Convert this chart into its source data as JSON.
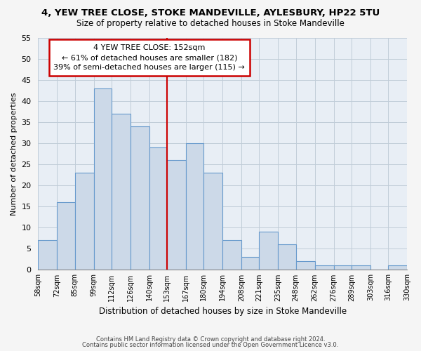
{
  "title": "4, YEW TREE CLOSE, STOKE MANDEVILLE, AYLESBURY, HP22 5TU",
  "subtitle": "Size of property relative to detached houses in Stoke Mandeville",
  "xlabel": "Distribution of detached houses by size in Stoke Mandeville",
  "ylabel": "Number of detached properties",
  "bin_labels": [
    "58sqm",
    "72sqm",
    "85sqm",
    "99sqm",
    "112sqm",
    "126sqm",
    "140sqm",
    "153sqm",
    "167sqm",
    "180sqm",
    "194sqm",
    "208sqm",
    "221sqm",
    "235sqm",
    "248sqm",
    "262sqm",
    "276sqm",
    "289sqm",
    "303sqm",
    "316sqm",
    "330sqm"
  ],
  "bin_edges": [
    58,
    72,
    85,
    99,
    112,
    126,
    140,
    153,
    167,
    180,
    194,
    208,
    221,
    235,
    248,
    262,
    276,
    289,
    303,
    316,
    330
  ],
  "counts": [
    7,
    16,
    23,
    43,
    37,
    34,
    29,
    26,
    30,
    23,
    7,
    3,
    9,
    6,
    2,
    1,
    1,
    1,
    0,
    1
  ],
  "bar_color": "#ccd9e8",
  "bar_edge_color": "#6699cc",
  "vline_x": 153,
  "vline_color": "#cc0000",
  "annotation_line1": "4 YEW TREE CLOSE: 152sqm",
  "annotation_line2": "← 61% of detached houses are smaller (182)",
  "annotation_line3": "39% of semi-detached houses are larger (115) →",
  "annotation_box_color": "#ffffff",
  "annotation_box_edge": "#cc0000",
  "ylim": [
    0,
    55
  ],
  "yticks": [
    0,
    5,
    10,
    15,
    20,
    25,
    30,
    35,
    40,
    45,
    50,
    55
  ],
  "footer1": "Contains HM Land Registry data © Crown copyright and database right 2024.",
  "footer2": "Contains public sector information licensed under the Open Government Licence v3.0.",
  "bg_color": "#f5f5f5",
  "plot_bg_color": "#e8eef5"
}
